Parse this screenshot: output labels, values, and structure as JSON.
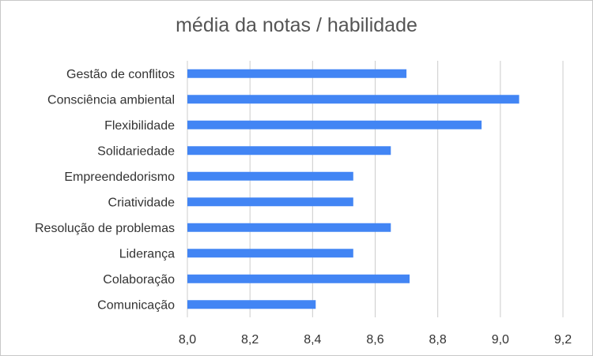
{
  "chart_data": {
    "type": "bar",
    "orientation": "horizontal",
    "title": "média da notas / habilidade",
    "xlabel": "",
    "ylabel": "",
    "categories": [
      "Gestão de conflitos",
      "Consciência ambiental",
      "Flexibilidade",
      "Solidariedade",
      "Empreendedorismo",
      "Criatividade",
      "Resolução de problemas",
      "Liderança",
      "Colaboração",
      "Comunicação"
    ],
    "values": [
      8.7,
      9.06,
      8.94,
      8.65,
      8.53,
      8.53,
      8.65,
      8.53,
      8.71,
      8.41
    ],
    "xlim": [
      8.0,
      9.2
    ],
    "xticks": [
      "8,0",
      "8,2",
      "8,4",
      "8,6",
      "8,8",
      "9,0",
      "9,2"
    ],
    "grid": true,
    "legend": "none",
    "bar_color": "#4285f4",
    "grid_color": "#cccccc"
  }
}
